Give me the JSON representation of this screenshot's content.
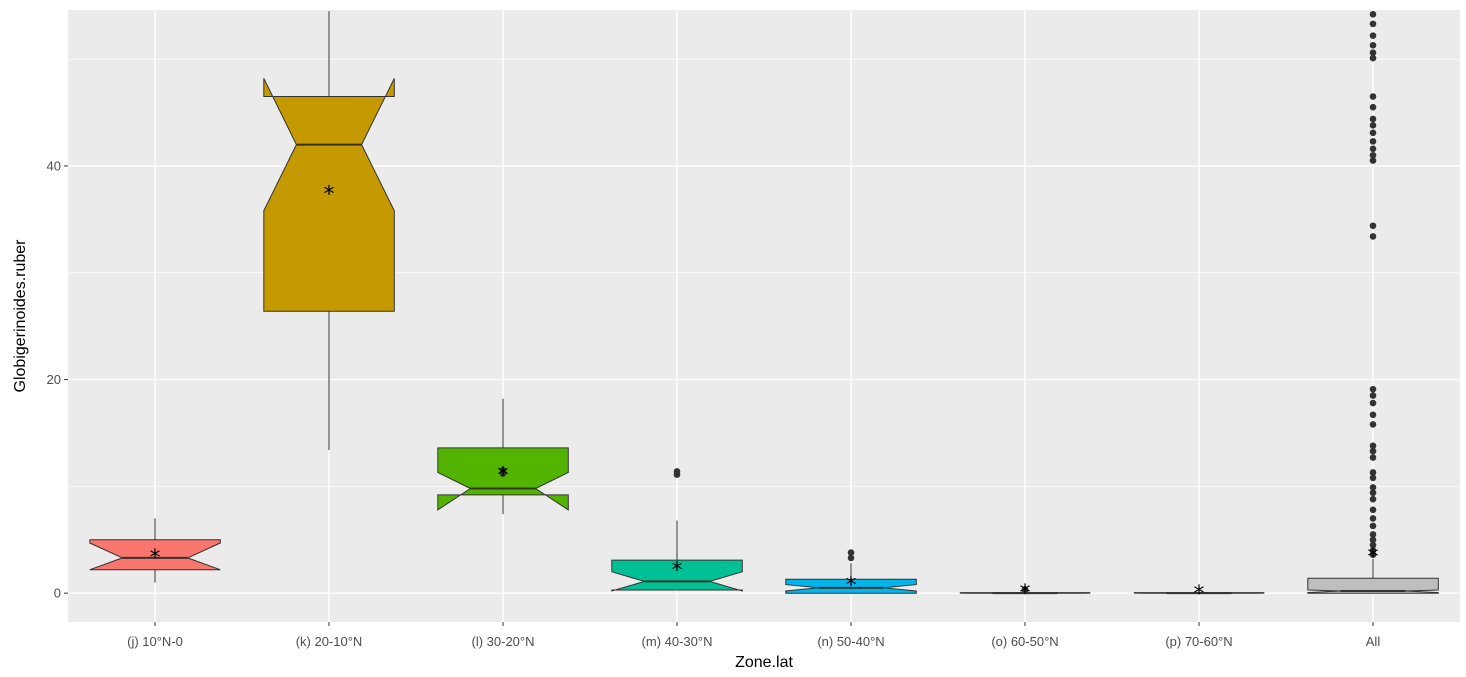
{
  "chart_data": {
    "type": "boxplot",
    "xlabel": "Zone.lat",
    "ylabel": "Globigerinoides.ruber",
    "ylim": [
      -2.7,
      54.6
    ],
    "yticks": [
      0,
      20,
      40
    ],
    "ytick_labels": [
      "0",
      "20",
      "40"
    ],
    "grid": true,
    "notched": true,
    "mean_marker": "*",
    "categories": [
      "(j) 10°N-0",
      "(k) 20-10°N",
      "(l) 30-20°N",
      "(m) 40-30°N",
      "(n) 50-40°N",
      "(o) 60-50°N",
      "(p) 70-60°N",
      "All"
    ],
    "boxes": [
      {
        "category": "(j) 10°N-0",
        "color": "#F8766D",
        "whisker_low": 1.0,
        "q1": 2.2,
        "median": 3.3,
        "q3": 5.0,
        "whisker_high": 7.0,
        "notch_low": 2.2,
        "notch_high": 4.7,
        "mean": 3.4,
        "outliers": []
      },
      {
        "category": "(k) 20-10°N",
        "color": "#C49A00",
        "whisker_low": 13.4,
        "q1": 26.4,
        "median": 42.0,
        "q3": 46.5,
        "whisker_high": 54.5,
        "notch_low": 35.8,
        "notch_high": 48.2,
        "mean": 37.4,
        "outliers": []
      },
      {
        "category": "(l) 30-20°N",
        "color": "#53B400",
        "whisker_low": 7.4,
        "q1": 9.2,
        "median": 9.8,
        "q3": 13.6,
        "whisker_high": 18.2,
        "notch_low": 7.8,
        "notch_high": 11.3,
        "mean": 11.1,
        "outliers": [
          11.2,
          11.5
        ]
      },
      {
        "category": "(m) 40-30°N",
        "color": "#00C094",
        "whisker_low": 0.3,
        "q1": 0.3,
        "median": 1.1,
        "q3": 3.1,
        "whisker_high": 6.8,
        "notch_low": 0.2,
        "notch_high": 2.0,
        "mean": 2.2,
        "outliers": [
          11.1,
          11.4
        ]
      },
      {
        "category": "(n) 50-40°N",
        "color": "#00B6EB",
        "whisker_low": 0.0,
        "q1": 0.0,
        "median": 0.5,
        "q3": 1.3,
        "whisker_high": 2.8,
        "notch_low": 0.2,
        "notch_high": 0.8,
        "mean": 0.8,
        "outliers": [
          3.3,
          3.8
        ]
      },
      {
        "category": "(o) 60-50°N",
        "color": "#A58AFF",
        "whisker_low": 0.0,
        "q1": 0.0,
        "median": 0.0,
        "q3": 0.05,
        "whisker_high": 0.1,
        "notch_low": 0.0,
        "notch_high": 0.05,
        "mean": 0.1,
        "outliers": [
          0.2,
          0.35
        ]
      },
      {
        "category": "(p) 70-60°N",
        "color": "#FB61D7",
        "whisker_low": 0.0,
        "q1": 0.0,
        "median": 0.0,
        "q3": 0.05,
        "whisker_high": 0.1,
        "notch_low": 0.0,
        "notch_high": 0.05,
        "mean": 0.0,
        "outliers": []
      },
      {
        "category": "All",
        "color": "#BEBEBE",
        "whisker_low": 0.0,
        "q1": 0.0,
        "median": 0.2,
        "q3": 1.4,
        "whisker_high": 3.2,
        "notch_low": 0.05,
        "notch_high": 0.3,
        "mean": 3.5,
        "outliers": [
          3.6,
          4.0,
          4.5,
          5.0,
          5.5,
          6.3,
          7.0,
          7.8,
          8.8,
          9.4,
          9.9,
          10.8,
          11.3,
          12.7,
          13.3,
          13.8,
          15.8,
          16.7,
          17.8,
          18.5,
          19.1,
          33.4,
          34.4,
          40.5,
          41.0,
          41.6,
          42.3,
          43.1,
          43.8,
          44.4,
          45.5,
          46.5,
          50.1,
          50.6,
          51.3,
          52.2,
          53.3,
          54.2
        ]
      }
    ]
  }
}
